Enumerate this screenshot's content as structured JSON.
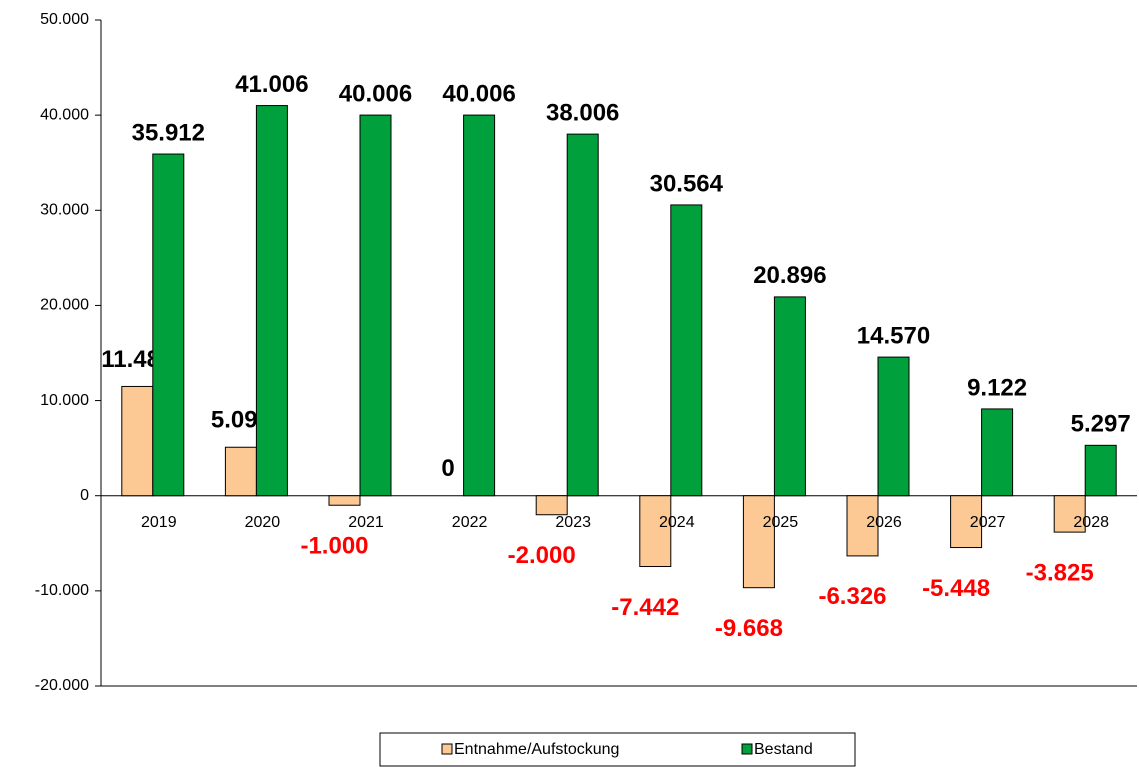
{
  "chart_data": {
    "type": "bar",
    "categories": [
      "2019",
      "2020",
      "2021",
      "2022",
      "2023",
      "2024",
      "2025",
      "2026",
      "2027",
      "2028"
    ],
    "series": [
      {
        "name": "Entnahme/Aufstockung",
        "color": "#fcc994",
        "values": [
          11484,
          5094,
          -1000,
          0,
          -2000,
          -7442,
          -9668,
          -6326,
          -5448,
          -3825
        ],
        "value_labels": [
          "11.484",
          "5.094",
          "-1.000",
          "0",
          "-2.000",
          "-7.442",
          "-9.668",
          "-6.326",
          "-5.448",
          "-3.825"
        ]
      },
      {
        "name": "Bestand",
        "color": "#00a03c",
        "values": [
          35912,
          41006,
          40006,
          40006,
          38006,
          30564,
          20896,
          14570,
          9122,
          5297
        ],
        "value_labels": [
          "35.912",
          "41.006",
          "40.006",
          "40.006",
          "38.006",
          "30.564",
          "20.896",
          "14.570",
          "9.122",
          "5.297"
        ]
      }
    ],
    "negative_label_color": "#ff0000",
    "ylim": [
      -20000,
      50000
    ],
    "yticks": [
      {
        "value": -20000,
        "label": "-20.000"
      },
      {
        "value": -10000,
        "label": "-10.000"
      },
      0,
      {
        "value": 10000,
        "label": "10.000"
      },
      {
        "value": 20000,
        "label": "20.000"
      },
      {
        "value": 30000,
        "label": "30.000"
      },
      {
        "value": 40000,
        "label": "40.000"
      },
      {
        "value": 50000,
        "label": "50.000"
      }
    ],
    "grid": false,
    "legend": "bottom"
  }
}
